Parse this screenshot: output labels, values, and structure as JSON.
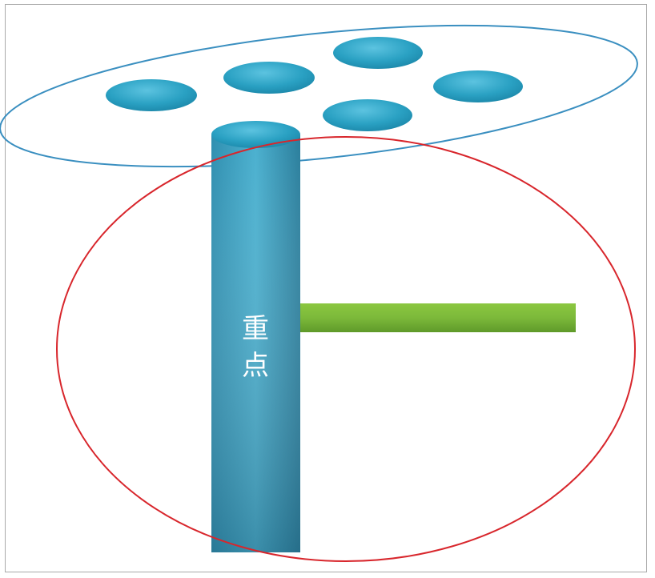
{
  "label": {
    "line1": "重",
    "line2": "点"
  },
  "colors": {
    "outer_ellipse_stroke": "#3a8fc0",
    "red_circle_stroke": "#d8262c",
    "disc_fill": "#2ea3c4",
    "pillar_fill": "#3b8fac",
    "bar_fill": "#7cb93a"
  }
}
